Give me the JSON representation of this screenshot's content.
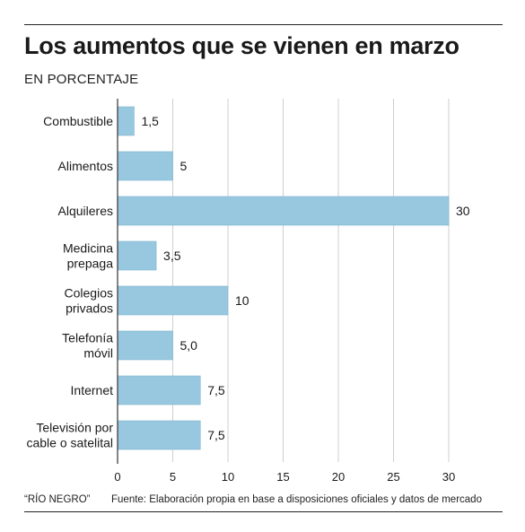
{
  "header": {
    "title": "Los aumentos que se vienen en marzo",
    "subtitle": "EN PORCENTAJE"
  },
  "footer": {
    "brand": "“RÍO NEGRO”",
    "source": "Fuente: Elaboración propia en base a disposiciones oficiales y datos de mercado"
  },
  "colors": {
    "bar": "#98c8df",
    "bar_stroke": "#7fb4cd",
    "grid": "#cfcfcf",
    "axis": "#333333"
  },
  "chart_data": {
    "type": "bar",
    "orientation": "horizontal",
    "title": "Los aumentos que se vienen en marzo",
    "subtitle": "EN PORCENTAJE",
    "categories": [
      [
        "Combustible"
      ],
      [
        "Alimentos"
      ],
      [
        "Alquileres"
      ],
      [
        "Medicina",
        "prepaga"
      ],
      [
        "Colegios",
        "privados"
      ],
      [
        "Telefonía",
        "móvil"
      ],
      [
        "Internet"
      ],
      [
        "Televisión por",
        "cable o satelital"
      ]
    ],
    "values": [
      1.5,
      5,
      30,
      3.5,
      10,
      5.0,
      7.5,
      7.5
    ],
    "value_labels": [
      "1,5",
      "5",
      "30",
      "3,5",
      "10",
      "5,0",
      "7,5",
      "7,5"
    ],
    "xticks": [
      0,
      5,
      10,
      15,
      20,
      25,
      30
    ],
    "xlim": [
      0,
      30
    ],
    "grid": true
  }
}
